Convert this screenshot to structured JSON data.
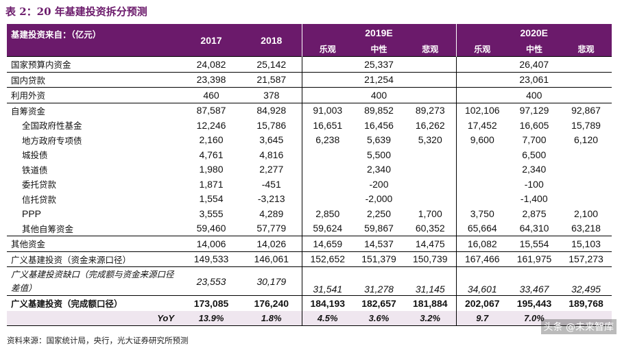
{
  "title": "表 2：20 年基建投资拆分预测",
  "header": {
    "label": "基建投资来自：（亿元）",
    "col_2017": "2017",
    "col_2018": "2018",
    "col_2019": "2019E",
    "col_2020": "2020E",
    "scenarios": [
      "乐观",
      "中性",
      "悲观",
      "乐观",
      "中性",
      "悲观"
    ]
  },
  "rows": [
    {
      "label": "国家预算内资金",
      "y2017": "24,082",
      "y2018": "25,142",
      "y2019": "25,337",
      "y2020": "26,407"
    },
    {
      "label": "国内贷款",
      "y2017": "23,398",
      "y2018": "21,587",
      "y2019": "21,254",
      "y2020": "23,061"
    },
    {
      "label": "利用外资",
      "y2017": "460",
      "y2018": "378",
      "y2019": "400",
      "y2020": "400"
    },
    {
      "label": "自筹资金",
      "v": [
        "87,587",
        "84,928",
        "91,003",
        "89,852",
        "89,273",
        "102,106",
        "97,129",
        "92,867"
      ]
    },
    {
      "label": "全国政府性基金",
      "v": [
        "12,246",
        "15,786",
        "16,651",
        "16,456",
        "16,262",
        "17,452",
        "16,605",
        "15,789"
      ]
    },
    {
      "label": "地方政府专项债",
      "v": [
        "2,160",
        "3,645",
        "6,238",
        "5,639",
        "5,320",
        "9,600",
        "7,700",
        "6,120"
      ]
    },
    {
      "label": "城投债",
      "y2017": "4,761",
      "y2018": "4,816",
      "y2019": "5,500",
      "y2020": "6,500"
    },
    {
      "label": "铁道债",
      "y2017": "1,980",
      "y2018": "2,277",
      "y2019": "2,340",
      "y2020": "2,340"
    },
    {
      "label": "委托贷款",
      "y2017": "1,871",
      "y2018": "-451",
      "y2019": "-200",
      "y2020": "-100"
    },
    {
      "label": "信托贷款",
      "y2017": "1,554",
      "y2018": "-3,213",
      "y2019": "-2,000",
      "y2020": "-1,400"
    },
    {
      "label": "PPP",
      "v": [
        "3,555",
        "4,289",
        "2,850",
        "2,250",
        "1,700",
        "3,750",
        "2,875",
        "2,100"
      ]
    },
    {
      "label": "其他自筹资金",
      "v": [
        "59,460",
        "57,779",
        "59,624",
        "59,867",
        "60,352",
        "65,664",
        "64,310",
        "63,218"
      ]
    },
    {
      "label": "其他资金",
      "v": [
        "14,006",
        "14,026",
        "14,659",
        "14,537",
        "14,475",
        "16,082",
        "15,554",
        "15,103"
      ]
    },
    {
      "label": "广义基建投资（资金来源口径）",
      "v": [
        "149,533",
        "146,061",
        "152,652",
        "151,379",
        "150,739",
        "167,466",
        "161,975",
        "157,273"
      ]
    },
    {
      "label": "广义基建投资缺口（完成额与资金来源口径差值）",
      "v": [
        "23,553",
        "30,179",
        "31,541",
        "31,278",
        "31,145",
        "34,601",
        "33,467",
        "32,495"
      ]
    },
    {
      "label": "广义基建投资（完成额口径）",
      "v": [
        "173,085",
        "176,240",
        "184,193",
        "182,657",
        "181,884",
        "202,067",
        "195,443",
        "189,768"
      ]
    },
    {
      "label": "YoY",
      "v": [
        "13.9%",
        "1.8%",
        "4.5%",
        "3.6%",
        "3.2%",
        "9.7",
        "7.0%",
        ""
      ]
    }
  ],
  "source": "资料来源：国家统计局，央行，光大证券研究所预测",
  "watermark": "头条 @未来智库"
}
